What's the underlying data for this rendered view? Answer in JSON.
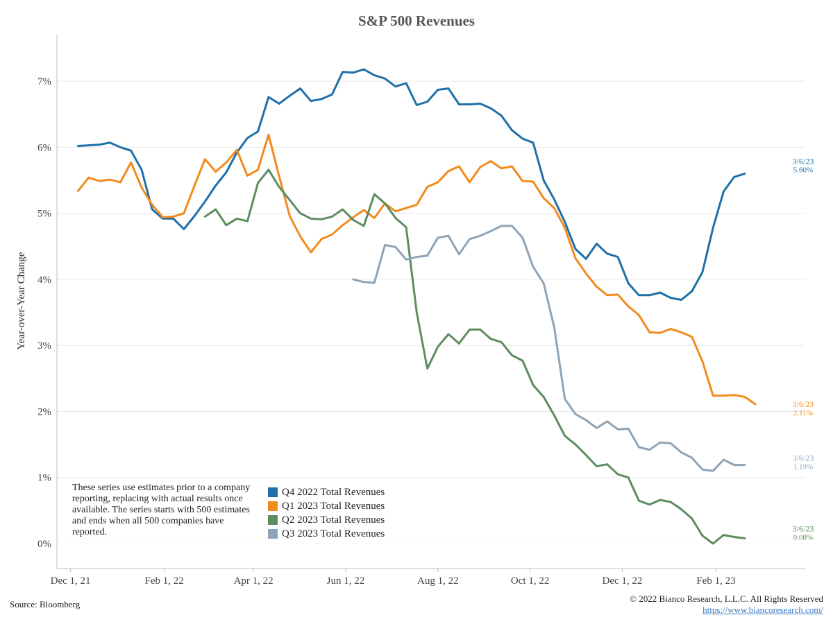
{
  "chart_data": {
    "type": "line",
    "title": "S&P 500 Revenues",
    "ylabel": "Year-over-Year Change",
    "xlabel": "",
    "ylim": [
      0,
      7.6
    ],
    "y_ticks": [
      0,
      1,
      2,
      3,
      4,
      5,
      6,
      7
    ],
    "y_tick_labels": [
      "0%",
      "1%",
      "2%",
      "3%",
      "4%",
      "5%",
      "6%",
      "7%"
    ],
    "x_range": [
      "2021-11-22",
      "2023-04-01"
    ],
    "x_ticks": [
      {
        "date": "2021-12-01",
        "label": "Dec 1, 21"
      },
      {
        "date": "2022-02-01",
        "label": "Feb 1, 22"
      },
      {
        "date": "2022-04-01",
        "label": "Apr 1, 22"
      },
      {
        "date": "2022-06-01",
        "label": "Jun 1, 22"
      },
      {
        "date": "2022-08-01",
        "label": "Aug 1, 22"
      },
      {
        "date": "2022-10-01",
        "label": "Oct 1, 22"
      },
      {
        "date": "2022-12-01",
        "label": "Dec 1, 22"
      },
      {
        "date": "2023-02-01",
        "label": "Feb 1, 23"
      }
    ],
    "grid": true,
    "series": [
      {
        "name": "Q4 2022 Total Revenues",
        "color": "#1f6fa8",
        "end_label_date": "3/6/23",
        "end_label_value": "5.60%",
        "points": [
          [
            "2021-12-06",
            6.02
          ],
          [
            "2021-12-13",
            6.03
          ],
          [
            "2021-12-20",
            6.04
          ],
          [
            "2021-12-27",
            6.07
          ],
          [
            "2022-01-03",
            6.0
          ],
          [
            "2022-01-10",
            5.95
          ],
          [
            "2022-01-17",
            5.66
          ],
          [
            "2022-01-24",
            5.06
          ],
          [
            "2022-01-31",
            4.92
          ],
          [
            "2022-02-07",
            4.92
          ],
          [
            "2022-02-14",
            4.76
          ],
          [
            "2022-02-21",
            4.96
          ],
          [
            "2022-02-28",
            5.18
          ],
          [
            "2022-03-07",
            5.42
          ],
          [
            "2022-03-14",
            5.62
          ],
          [
            "2022-03-21",
            5.92
          ],
          [
            "2022-03-28",
            6.14
          ],
          [
            "2022-04-04",
            6.24
          ],
          [
            "2022-04-11",
            6.76
          ],
          [
            "2022-04-18",
            6.66
          ],
          [
            "2022-04-25",
            6.78
          ],
          [
            "2022-05-02",
            6.89
          ],
          [
            "2022-05-09",
            6.7
          ],
          [
            "2022-05-16",
            6.73
          ],
          [
            "2022-05-23",
            6.8
          ],
          [
            "2022-05-30",
            7.14
          ],
          [
            "2022-06-06",
            7.13
          ],
          [
            "2022-06-13",
            7.18
          ],
          [
            "2022-06-20",
            7.09
          ],
          [
            "2022-06-27",
            7.04
          ],
          [
            "2022-07-04",
            6.92
          ],
          [
            "2022-07-11",
            6.97
          ],
          [
            "2022-07-18",
            6.64
          ],
          [
            "2022-07-25",
            6.69
          ],
          [
            "2022-08-01",
            6.87
          ],
          [
            "2022-08-08",
            6.89
          ],
          [
            "2022-08-15",
            6.65
          ],
          [
            "2022-08-22",
            6.65
          ],
          [
            "2022-08-29",
            6.66
          ],
          [
            "2022-09-05",
            6.59
          ],
          [
            "2022-09-12",
            6.48
          ],
          [
            "2022-09-19",
            6.26
          ],
          [
            "2022-09-26",
            6.13
          ],
          [
            "2022-10-03",
            6.07
          ],
          [
            "2022-10-10",
            5.5
          ],
          [
            "2022-10-17",
            5.21
          ],
          [
            "2022-10-24",
            4.87
          ],
          [
            "2022-10-31",
            4.46
          ],
          [
            "2022-11-07",
            4.31
          ],
          [
            "2022-11-14",
            4.54
          ],
          [
            "2022-11-21",
            4.39
          ],
          [
            "2022-11-28",
            4.34
          ],
          [
            "2022-12-05",
            3.94
          ],
          [
            "2022-12-12",
            3.76
          ],
          [
            "2022-12-19",
            3.76
          ],
          [
            "2022-12-26",
            3.8
          ],
          [
            "2023-01-02",
            3.72
          ],
          [
            "2023-01-09",
            3.69
          ],
          [
            "2023-01-16",
            3.82
          ],
          [
            "2023-01-23",
            4.11
          ],
          [
            "2023-01-30",
            4.78
          ],
          [
            "2023-02-06",
            5.33
          ],
          [
            "2023-02-13",
            5.55
          ],
          [
            "2023-02-20",
            5.6
          ]
        ]
      },
      {
        "name": "Q1 2023 Total Revenues",
        "color": "#f28a1c",
        "end_label_date": "3/6/23",
        "end_label_value": "2.11%",
        "points": [
          [
            "2021-12-06",
            5.34
          ],
          [
            "2021-12-13",
            5.54
          ],
          [
            "2021-12-20",
            5.49
          ],
          [
            "2021-12-27",
            5.51
          ],
          [
            "2022-01-03",
            5.47
          ],
          [
            "2022-01-10",
            5.77
          ],
          [
            "2022-01-17",
            5.39
          ],
          [
            "2022-01-24",
            5.13
          ],
          [
            "2022-01-31",
            4.94
          ],
          [
            "2022-02-07",
            4.95
          ],
          [
            "2022-02-14",
            5.0
          ],
          [
            "2022-02-21",
            5.42
          ],
          [
            "2022-02-28",
            5.82
          ],
          [
            "2022-03-07",
            5.63
          ],
          [
            "2022-03-14",
            5.77
          ],
          [
            "2022-03-21",
            5.96
          ],
          [
            "2022-03-28",
            5.57
          ],
          [
            "2022-04-04",
            5.66
          ],
          [
            "2022-04-11",
            6.19
          ],
          [
            "2022-04-18",
            5.56
          ],
          [
            "2022-04-25",
            4.96
          ],
          [
            "2022-05-02",
            4.65
          ],
          [
            "2022-05-09",
            4.41
          ],
          [
            "2022-05-16",
            4.61
          ],
          [
            "2022-05-23",
            4.68
          ],
          [
            "2022-05-30",
            4.82
          ],
          [
            "2022-06-06",
            4.94
          ],
          [
            "2022-06-13",
            5.05
          ],
          [
            "2022-06-20",
            4.93
          ],
          [
            "2022-06-27",
            5.15
          ],
          [
            "2022-07-04",
            5.03
          ],
          [
            "2022-07-11",
            5.08
          ],
          [
            "2022-07-18",
            5.13
          ],
          [
            "2022-07-25",
            5.4
          ],
          [
            "2022-08-01",
            5.47
          ],
          [
            "2022-08-08",
            5.64
          ],
          [
            "2022-08-15",
            5.71
          ],
          [
            "2022-08-22",
            5.47
          ],
          [
            "2022-08-29",
            5.7
          ],
          [
            "2022-09-05",
            5.79
          ],
          [
            "2022-09-12",
            5.68
          ],
          [
            "2022-09-19",
            5.71
          ],
          [
            "2022-09-26",
            5.49
          ],
          [
            "2022-10-03",
            5.48
          ],
          [
            "2022-10-10",
            5.23
          ],
          [
            "2022-10-17",
            5.08
          ],
          [
            "2022-10-24",
            4.78
          ],
          [
            "2022-10-31",
            4.32
          ],
          [
            "2022-11-07",
            4.09
          ],
          [
            "2022-11-14",
            3.89
          ],
          [
            "2022-11-21",
            3.76
          ],
          [
            "2022-11-28",
            3.77
          ],
          [
            "2022-12-05",
            3.59
          ],
          [
            "2022-12-12",
            3.46
          ],
          [
            "2022-12-19",
            3.2
          ],
          [
            "2022-12-26",
            3.19
          ],
          [
            "2023-01-02",
            3.25
          ],
          [
            "2023-01-09",
            3.2
          ],
          [
            "2023-01-16",
            3.13
          ],
          [
            "2023-01-23",
            2.76
          ],
          [
            "2023-01-30",
            2.24
          ],
          [
            "2023-02-06",
            2.24
          ],
          [
            "2023-02-13",
            2.25
          ],
          [
            "2023-02-20",
            2.22
          ],
          [
            "2023-02-27",
            2.11
          ]
        ]
      },
      {
        "name": "Q2 2023 Total Revenues",
        "color": "#5d8c5f",
        "end_label_date": "3/6/23",
        "end_label_value": "0.08%",
        "points": [
          [
            "2022-02-28",
            4.95
          ],
          [
            "2022-03-07",
            5.06
          ],
          [
            "2022-03-14",
            4.82
          ],
          [
            "2022-03-21",
            4.92
          ],
          [
            "2022-03-28",
            4.88
          ],
          [
            "2022-04-04",
            5.46
          ],
          [
            "2022-04-11",
            5.66
          ],
          [
            "2022-04-18",
            5.4
          ],
          [
            "2022-04-25",
            5.2
          ],
          [
            "2022-05-02",
            5.0
          ],
          [
            "2022-05-09",
            4.92
          ],
          [
            "2022-05-16",
            4.91
          ],
          [
            "2022-05-23",
            4.95
          ],
          [
            "2022-05-30",
            5.06
          ],
          [
            "2022-06-06",
            4.9
          ],
          [
            "2022-06-13",
            4.81
          ],
          [
            "2022-06-20",
            5.29
          ],
          [
            "2022-06-27",
            5.15
          ],
          [
            "2022-07-04",
            4.93
          ],
          [
            "2022-07-11",
            4.79
          ],
          [
            "2022-07-18",
            3.5
          ],
          [
            "2022-07-25",
            2.65
          ],
          [
            "2022-08-01",
            2.98
          ],
          [
            "2022-08-08",
            3.17
          ],
          [
            "2022-08-15",
            3.03
          ],
          [
            "2022-08-22",
            3.24
          ],
          [
            "2022-08-29",
            3.24
          ],
          [
            "2022-09-05",
            3.1
          ],
          [
            "2022-09-12",
            3.05
          ],
          [
            "2022-09-19",
            2.85
          ],
          [
            "2022-09-26",
            2.77
          ],
          [
            "2022-10-03",
            2.4
          ],
          [
            "2022-10-10",
            2.22
          ],
          [
            "2022-10-17",
            1.94
          ],
          [
            "2022-10-24",
            1.63
          ],
          [
            "2022-10-31",
            1.5
          ],
          [
            "2022-11-07",
            1.34
          ],
          [
            "2022-11-14",
            1.17
          ],
          [
            "2022-11-21",
            1.2
          ],
          [
            "2022-11-28",
            1.05
          ],
          [
            "2022-12-05",
            1.0
          ],
          [
            "2022-12-12",
            0.65
          ],
          [
            "2022-12-19",
            0.59
          ],
          [
            "2022-12-26",
            0.66
          ],
          [
            "2023-01-02",
            0.63
          ],
          [
            "2023-01-09",
            0.52
          ],
          [
            "2023-01-16",
            0.38
          ],
          [
            "2023-01-23",
            0.12
          ],
          [
            "2023-01-30",
            0.0
          ],
          [
            "2023-02-06",
            0.13
          ],
          [
            "2023-02-13",
            0.1
          ],
          [
            "2023-02-20",
            0.08
          ]
        ]
      },
      {
        "name": "Q3 2023 Total Revenues",
        "color": "#8fa3b6",
        "end_label_date": "3/6/23",
        "end_label_value": "1.19%",
        "points": [
          [
            "2022-06-06",
            4.0
          ],
          [
            "2022-06-13",
            3.96
          ],
          [
            "2022-06-20",
            3.95
          ],
          [
            "2022-06-27",
            4.52
          ],
          [
            "2022-07-04",
            4.49
          ],
          [
            "2022-07-11",
            4.3
          ],
          [
            "2022-07-18",
            4.34
          ],
          [
            "2022-07-25",
            4.36
          ],
          [
            "2022-08-01",
            4.63
          ],
          [
            "2022-08-08",
            4.66
          ],
          [
            "2022-08-15",
            4.38
          ],
          [
            "2022-08-22",
            4.61
          ],
          [
            "2022-08-29",
            4.66
          ],
          [
            "2022-09-05",
            4.73
          ],
          [
            "2022-09-12",
            4.81
          ],
          [
            "2022-09-19",
            4.81
          ],
          [
            "2022-09-26",
            4.63
          ],
          [
            "2022-10-03",
            4.19
          ],
          [
            "2022-10-10",
            3.94
          ],
          [
            "2022-10-17",
            3.27
          ],
          [
            "2022-10-24",
            2.19
          ],
          [
            "2022-10-31",
            1.96
          ],
          [
            "2022-11-07",
            1.87
          ],
          [
            "2022-11-14",
            1.75
          ],
          [
            "2022-11-21",
            1.85
          ],
          [
            "2022-11-28",
            1.73
          ],
          [
            "2022-12-05",
            1.74
          ],
          [
            "2022-12-12",
            1.46
          ],
          [
            "2022-12-19",
            1.42
          ],
          [
            "2022-12-26",
            1.53
          ],
          [
            "2023-01-02",
            1.52
          ],
          [
            "2023-01-09",
            1.38
          ],
          [
            "2023-01-16",
            1.3
          ],
          [
            "2023-01-23",
            1.12
          ],
          [
            "2023-01-30",
            1.1
          ],
          [
            "2023-02-06",
            1.27
          ],
          [
            "2023-02-13",
            1.19
          ],
          [
            "2023-02-20",
            1.19
          ]
        ]
      }
    ]
  },
  "note": "These series use estimates prior to a company reporting, replacing with actual results once available. The series starts with 500 estimates and ends when all 500 companies have reported.",
  "footer": {
    "source": "Source: Bloomberg",
    "copyright": "© 2022 Bianco Research, L.L.C. All Rights Reserved",
    "url": "https://www.biancoresearch.com/"
  }
}
